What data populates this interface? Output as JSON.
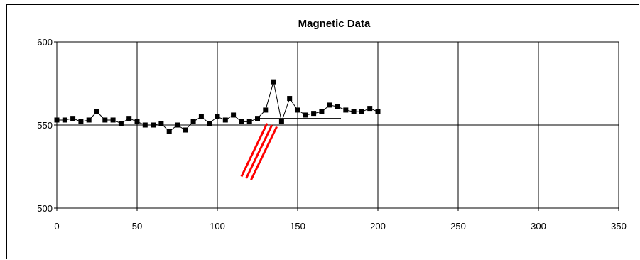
{
  "chart_data": {
    "type": "scatter",
    "title": "Magnetic Data",
    "xlabel": "",
    "ylabel": "",
    "xlim": [
      0,
      350
    ],
    "ylim": [
      500,
      600
    ],
    "x_ticks": [
      0,
      50,
      100,
      150,
      200,
      250,
      300,
      350
    ],
    "y_ticks": [
      500,
      550,
      600
    ],
    "grid": true,
    "series": [
      {
        "marker": "square",
        "line": true,
        "color": "#000000",
        "x": [
          0,
          5,
          10,
          15,
          20,
          25,
          30,
          35,
          40,
          45,
          50,
          55,
          60,
          65,
          70,
          75,
          80,
          85,
          90,
          95,
          100,
          105,
          110,
          115,
          120,
          125,
          130,
          135,
          140,
          145,
          150,
          155,
          160,
          165,
          170,
          175,
          180,
          185,
          190,
          195,
          200
        ],
        "y": [
          553,
          553,
          554,
          552,
          553,
          558,
          553,
          553,
          551,
          554,
          552,
          550,
          550,
          551,
          546,
          550,
          547,
          552,
          555,
          551,
          555,
          553,
          556,
          552,
          552,
          554,
          559,
          576,
          552,
          566,
          559,
          556,
          557,
          558,
          562,
          561,
          559,
          558,
          558,
          560,
          558
        ]
      }
    ],
    "annotations": [
      {
        "type": "line",
        "color": "#000000",
        "x": [
          125,
          177
        ],
        "y": [
          554,
          554
        ]
      },
      {
        "type": "line",
        "color": "#ff0000",
        "x": [
          115,
          131
        ],
        "y": [
          519,
          551
        ]
      },
      {
        "type": "line",
        "color": "#ff0000",
        "x": [
          118,
          134
        ],
        "y": [
          518,
          550
        ]
      },
      {
        "type": "line",
        "color": "#ff0000",
        "x": [
          121,
          137
        ],
        "y": [
          517,
          549
        ]
      }
    ]
  }
}
